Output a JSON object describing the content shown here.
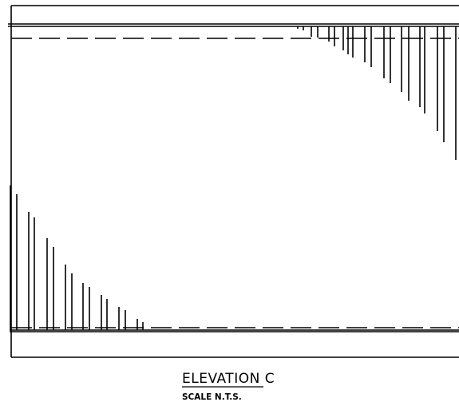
{
  "title": "ELEVATION C",
  "subtitle": "SCALE N.T.S.",
  "line_color": "#000000",
  "background": "#ffffff"
}
